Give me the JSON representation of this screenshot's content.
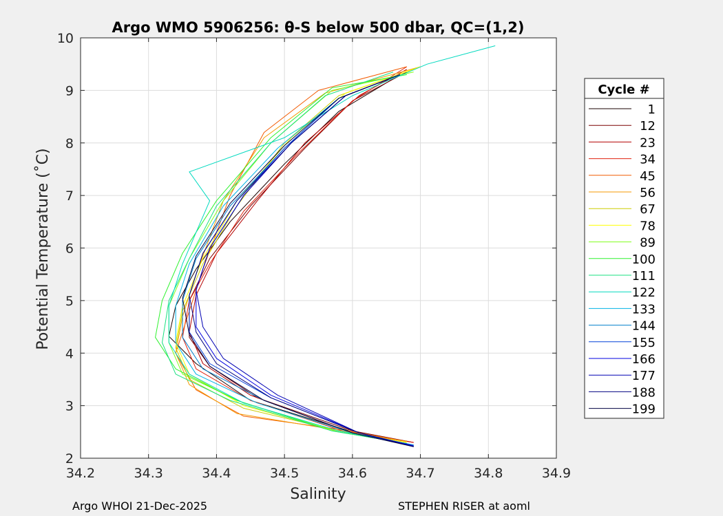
{
  "chart_data": {
    "type": "line",
    "title": "Argo WMO 5906256: θ-S below 500 dbar,  QC=(1,2)",
    "xlabel": "Salinity",
    "ylabel": "Potential Temperature (˚C)",
    "xlim": [
      34.2,
      34.9
    ],
    "ylim": [
      2,
      10
    ],
    "xticks": [
      "34.2",
      "34.3",
      "34.4",
      "34.5",
      "34.6",
      "34.7",
      "34.8",
      "34.9"
    ],
    "yticks": [
      "2",
      "3",
      "4",
      "5",
      "6",
      "7",
      "8",
      "9",
      "10"
    ],
    "grid": true,
    "legend_title": "Cycle #",
    "legend_position": "right",
    "series": [
      {
        "name": "1",
        "color": "#1a0000",
        "points": [
          [
            34.69,
            2.22
          ],
          [
            34.6,
            2.5
          ],
          [
            34.45,
            3.1
          ],
          [
            34.37,
            3.8
          ],
          [
            34.33,
            4.32
          ],
          [
            34.34,
            4.9
          ],
          [
            34.37,
            5.6
          ],
          [
            34.42,
            6.5
          ],
          [
            34.5,
            7.6
          ],
          [
            34.58,
            8.6
          ],
          [
            34.67,
            9.3
          ]
        ]
      },
      {
        "name": "12",
        "color": "#7a0000",
        "points": [
          [
            34.69,
            2.3
          ],
          [
            34.6,
            2.52
          ],
          [
            34.46,
            3.15
          ],
          [
            34.39,
            3.75
          ],
          [
            34.36,
            4.3
          ],
          [
            34.36,
            5.0
          ],
          [
            34.39,
            5.8
          ],
          [
            34.45,
            6.8
          ],
          [
            34.53,
            7.9
          ],
          [
            34.6,
            8.8
          ],
          [
            34.68,
            9.35
          ]
        ]
      },
      {
        "name": "23",
        "color": "#b30000",
        "points": [
          [
            34.69,
            2.3
          ],
          [
            34.59,
            2.52
          ],
          [
            34.45,
            3.2
          ],
          [
            34.38,
            3.8
          ],
          [
            34.36,
            4.4
          ],
          [
            34.37,
            5.1
          ],
          [
            34.4,
            5.9
          ],
          [
            34.46,
            6.9
          ],
          [
            34.53,
            8.0
          ],
          [
            34.61,
            8.9
          ],
          [
            34.68,
            9.4
          ]
        ]
      },
      {
        "name": "34",
        "color": "#e0200d",
        "points": [
          [
            34.69,
            2.3
          ],
          [
            34.59,
            2.5
          ],
          [
            34.45,
            3.1
          ],
          [
            34.37,
            3.7
          ],
          [
            34.35,
            4.3
          ],
          [
            34.36,
            5.0
          ],
          [
            34.39,
            5.7
          ],
          [
            34.44,
            6.7
          ],
          [
            34.52,
            7.8
          ],
          [
            34.6,
            8.8
          ],
          [
            34.68,
            9.45
          ]
        ]
      },
      {
        "name": "45",
        "color": "#f25a00",
        "points": [
          [
            34.68,
            2.32
          ],
          [
            34.58,
            2.55
          ],
          [
            34.44,
            2.8
          ],
          [
            34.37,
            3.3
          ],
          [
            34.34,
            4.0
          ],
          [
            34.36,
            4.8
          ],
          [
            34.38,
            5.6
          ],
          [
            34.42,
            7.0
          ],
          [
            34.47,
            8.2
          ],
          [
            34.55,
            9.0
          ],
          [
            34.68,
            9.45
          ]
        ]
      },
      {
        "name": "56",
        "color": "#f59a00",
        "points": [
          [
            34.68,
            2.32
          ],
          [
            34.57,
            2.55
          ],
          [
            34.43,
            2.85
          ],
          [
            34.36,
            3.4
          ],
          [
            34.34,
            4.0
          ],
          [
            34.35,
            4.7
          ],
          [
            34.37,
            5.5
          ],
          [
            34.41,
            6.9
          ],
          [
            34.47,
            8.1
          ],
          [
            34.56,
            8.95
          ],
          [
            34.7,
            9.45
          ]
        ]
      },
      {
        "name": "67",
        "color": "#cccc00",
        "points": [
          [
            34.68,
            2.3
          ],
          [
            34.58,
            2.52
          ],
          [
            34.44,
            2.95
          ],
          [
            34.36,
            3.5
          ],
          [
            34.34,
            4.1
          ],
          [
            34.35,
            4.8
          ],
          [
            34.38,
            5.7
          ],
          [
            34.43,
            6.8
          ],
          [
            34.5,
            8.0
          ],
          [
            34.58,
            8.9
          ],
          [
            34.69,
            9.4
          ]
        ]
      },
      {
        "name": "78",
        "color": "#ffff00",
        "points": [
          [
            34.68,
            2.3
          ],
          [
            34.58,
            2.5
          ],
          [
            34.44,
            3.0
          ],
          [
            34.36,
            3.6
          ],
          [
            34.34,
            4.2
          ],
          [
            34.35,
            4.9
          ],
          [
            34.38,
            5.8
          ],
          [
            34.43,
            6.9
          ],
          [
            34.51,
            8.1
          ],
          [
            34.59,
            8.95
          ],
          [
            34.7,
            9.45
          ]
        ]
      },
      {
        "name": "89",
        "color": "#80ff1a",
        "points": [
          [
            34.68,
            2.28
          ],
          [
            34.58,
            2.5
          ],
          [
            34.44,
            3.05
          ],
          [
            34.35,
            3.6
          ],
          [
            34.33,
            4.2
          ],
          [
            34.33,
            4.9
          ],
          [
            34.36,
            5.8
          ],
          [
            34.41,
            6.9
          ],
          [
            34.48,
            8.0
          ],
          [
            34.57,
            9.0
          ],
          [
            34.69,
            9.35
          ]
        ]
      },
      {
        "name": "100",
        "color": "#2df22d",
        "points": [
          [
            34.68,
            2.28
          ],
          [
            34.57,
            2.52
          ],
          [
            34.43,
            3.1
          ],
          [
            34.34,
            3.7
          ],
          [
            34.31,
            4.3
          ],
          [
            34.32,
            5.0
          ],
          [
            34.35,
            5.9
          ],
          [
            34.4,
            6.9
          ],
          [
            34.48,
            8.1
          ],
          [
            34.57,
            9.05
          ],
          [
            34.68,
            9.3
          ]
        ]
      },
      {
        "name": "111",
        "color": "#1ae080",
        "points": [
          [
            34.68,
            2.28
          ],
          [
            34.57,
            2.52
          ],
          [
            34.42,
            3.1
          ],
          [
            34.34,
            3.6
          ],
          [
            34.32,
            4.2
          ],
          [
            34.33,
            5.0
          ],
          [
            34.36,
            5.8
          ],
          [
            34.4,
            6.8
          ],
          [
            34.48,
            8.0
          ],
          [
            34.56,
            8.9
          ],
          [
            34.66,
            9.35
          ]
        ]
      },
      {
        "name": "122",
        "color": "#00d9bf",
        "points": [
          [
            34.68,
            2.28
          ],
          [
            34.58,
            2.52
          ],
          [
            34.44,
            3.05
          ],
          [
            34.36,
            3.6
          ],
          [
            34.33,
            4.2
          ],
          [
            34.33,
            4.9
          ],
          [
            34.35,
            5.7
          ],
          [
            34.39,
            6.9
          ],
          [
            34.36,
            7.45
          ],
          [
            34.5,
            8.1
          ],
          [
            34.6,
            8.9
          ],
          [
            34.71,
            9.5
          ],
          [
            34.81,
            9.85
          ]
        ]
      },
      {
        "name": "133",
        "color": "#00b3e6",
        "points": [
          [
            34.69,
            2.25
          ],
          [
            34.6,
            2.48
          ],
          [
            34.46,
            3.05
          ],
          [
            34.37,
            3.6
          ],
          [
            34.34,
            4.2
          ],
          [
            34.34,
            4.9
          ],
          [
            34.36,
            5.7
          ],
          [
            34.41,
            6.8
          ],
          [
            34.49,
            7.9
          ],
          [
            34.58,
            8.85
          ],
          [
            34.67,
            9.3
          ]
        ]
      },
      {
        "name": "144",
        "color": "#0080cc",
        "points": [
          [
            34.69,
            2.25
          ],
          [
            34.6,
            2.48
          ],
          [
            34.47,
            3.1
          ],
          [
            34.38,
            3.7
          ],
          [
            34.35,
            4.3
          ],
          [
            34.35,
            5.0
          ],
          [
            34.37,
            5.8
          ],
          [
            34.42,
            6.8
          ],
          [
            34.5,
            7.9
          ],
          [
            34.58,
            8.85
          ],
          [
            34.67,
            9.3
          ]
        ]
      },
      {
        "name": "155",
        "color": "#0040d9",
        "points": [
          [
            34.69,
            2.24
          ],
          [
            34.61,
            2.48
          ],
          [
            34.48,
            3.15
          ],
          [
            34.39,
            3.8
          ],
          [
            34.36,
            4.4
          ],
          [
            34.36,
            5.1
          ],
          [
            34.38,
            5.9
          ],
          [
            34.43,
            6.9
          ],
          [
            34.5,
            7.9
          ],
          [
            34.58,
            8.85
          ],
          [
            34.67,
            9.3
          ]
        ]
      },
      {
        "name": "166",
        "color": "#0000e0",
        "points": [
          [
            34.69,
            2.23
          ],
          [
            34.61,
            2.48
          ],
          [
            34.48,
            3.2
          ],
          [
            34.4,
            3.9
          ],
          [
            34.37,
            4.5
          ],
          [
            34.37,
            5.2
          ],
          [
            34.39,
            6.0
          ],
          [
            34.44,
            7.0
          ],
          [
            34.51,
            8.0
          ],
          [
            34.59,
            8.9
          ],
          [
            34.67,
            9.3
          ]
        ]
      },
      {
        "name": "177",
        "color": "#0000b3",
        "points": [
          [
            34.69,
            2.22
          ],
          [
            34.61,
            2.48
          ],
          [
            34.49,
            3.2
          ],
          [
            34.41,
            3.9
          ],
          [
            34.38,
            4.5
          ],
          [
            34.37,
            5.2
          ],
          [
            34.39,
            6.0
          ],
          [
            34.44,
            7.0
          ],
          [
            34.51,
            8.0
          ],
          [
            34.59,
            8.9
          ],
          [
            34.67,
            9.3
          ]
        ]
      },
      {
        "name": "188",
        "color": "#000080",
        "points": [
          [
            34.69,
            2.22
          ],
          [
            34.61,
            2.48
          ],
          [
            34.48,
            3.15
          ],
          [
            34.4,
            3.8
          ],
          [
            34.37,
            4.4
          ],
          [
            34.36,
            5.1
          ],
          [
            34.38,
            5.9
          ],
          [
            34.43,
            6.9
          ],
          [
            34.51,
            8.0
          ],
          [
            34.59,
            8.9
          ],
          [
            34.67,
            9.3
          ]
        ]
      },
      {
        "name": "199",
        "color": "#000040",
        "points": [
          [
            34.69,
            2.22
          ],
          [
            34.6,
            2.48
          ],
          [
            34.47,
            3.1
          ],
          [
            34.39,
            3.75
          ],
          [
            34.36,
            4.35
          ],
          [
            34.35,
            5.05
          ],
          [
            34.37,
            5.85
          ],
          [
            34.42,
            6.85
          ],
          [
            34.5,
            7.95
          ],
          [
            34.58,
            8.85
          ],
          [
            34.66,
            9.25
          ]
        ]
      }
    ]
  },
  "footer": {
    "left": "Argo WHOI 21-Dec-2025",
    "right": "STEPHEN RISER at aoml"
  }
}
